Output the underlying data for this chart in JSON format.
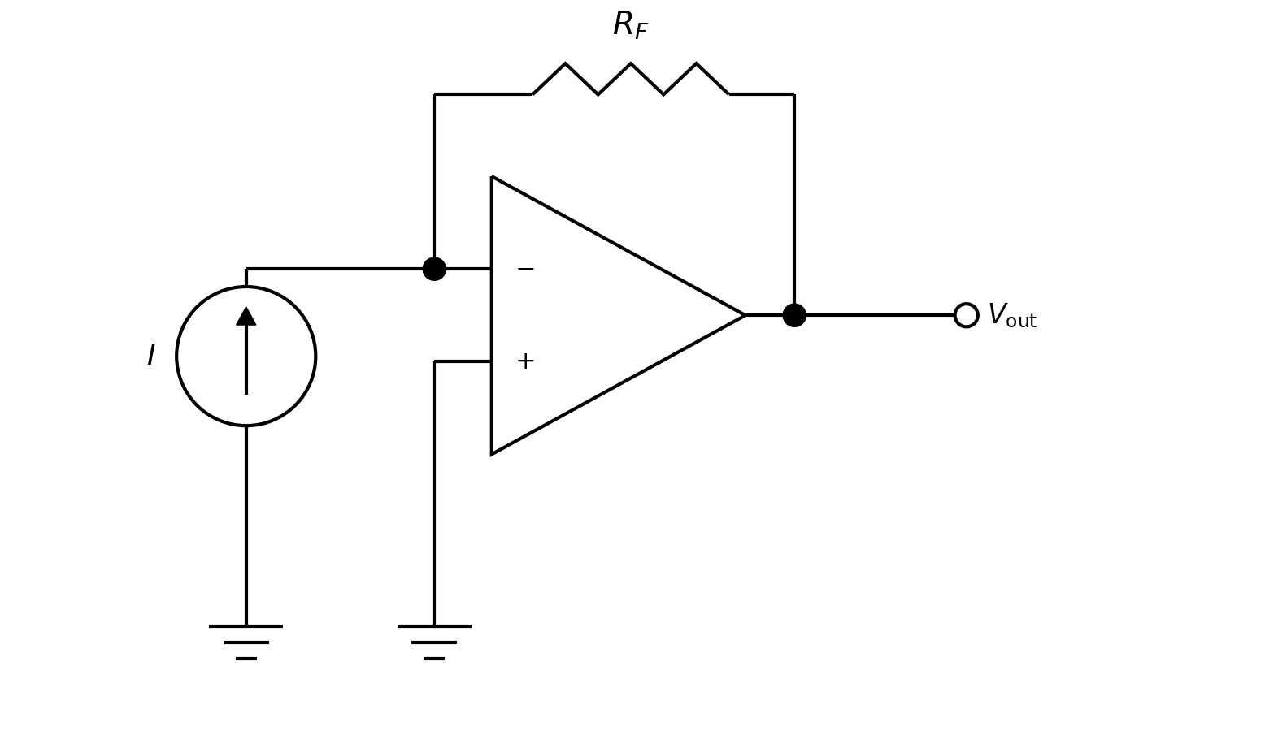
{
  "background_color": "#ffffff",
  "line_color": "#000000",
  "line_width": 3.0,
  "fig_width": 15.72,
  "fig_height": 9.26,
  "dpi": 100,
  "RF_label": "$R_F$",
  "I_label": "$I$",
  "Vout_label": "$V_{\\mathrm{out}}$",
  "minus_label": "$-$",
  "plus_label": "$+$",
  "xlim": [
    0,
    14
  ],
  "ylim": [
    0,
    9
  ]
}
